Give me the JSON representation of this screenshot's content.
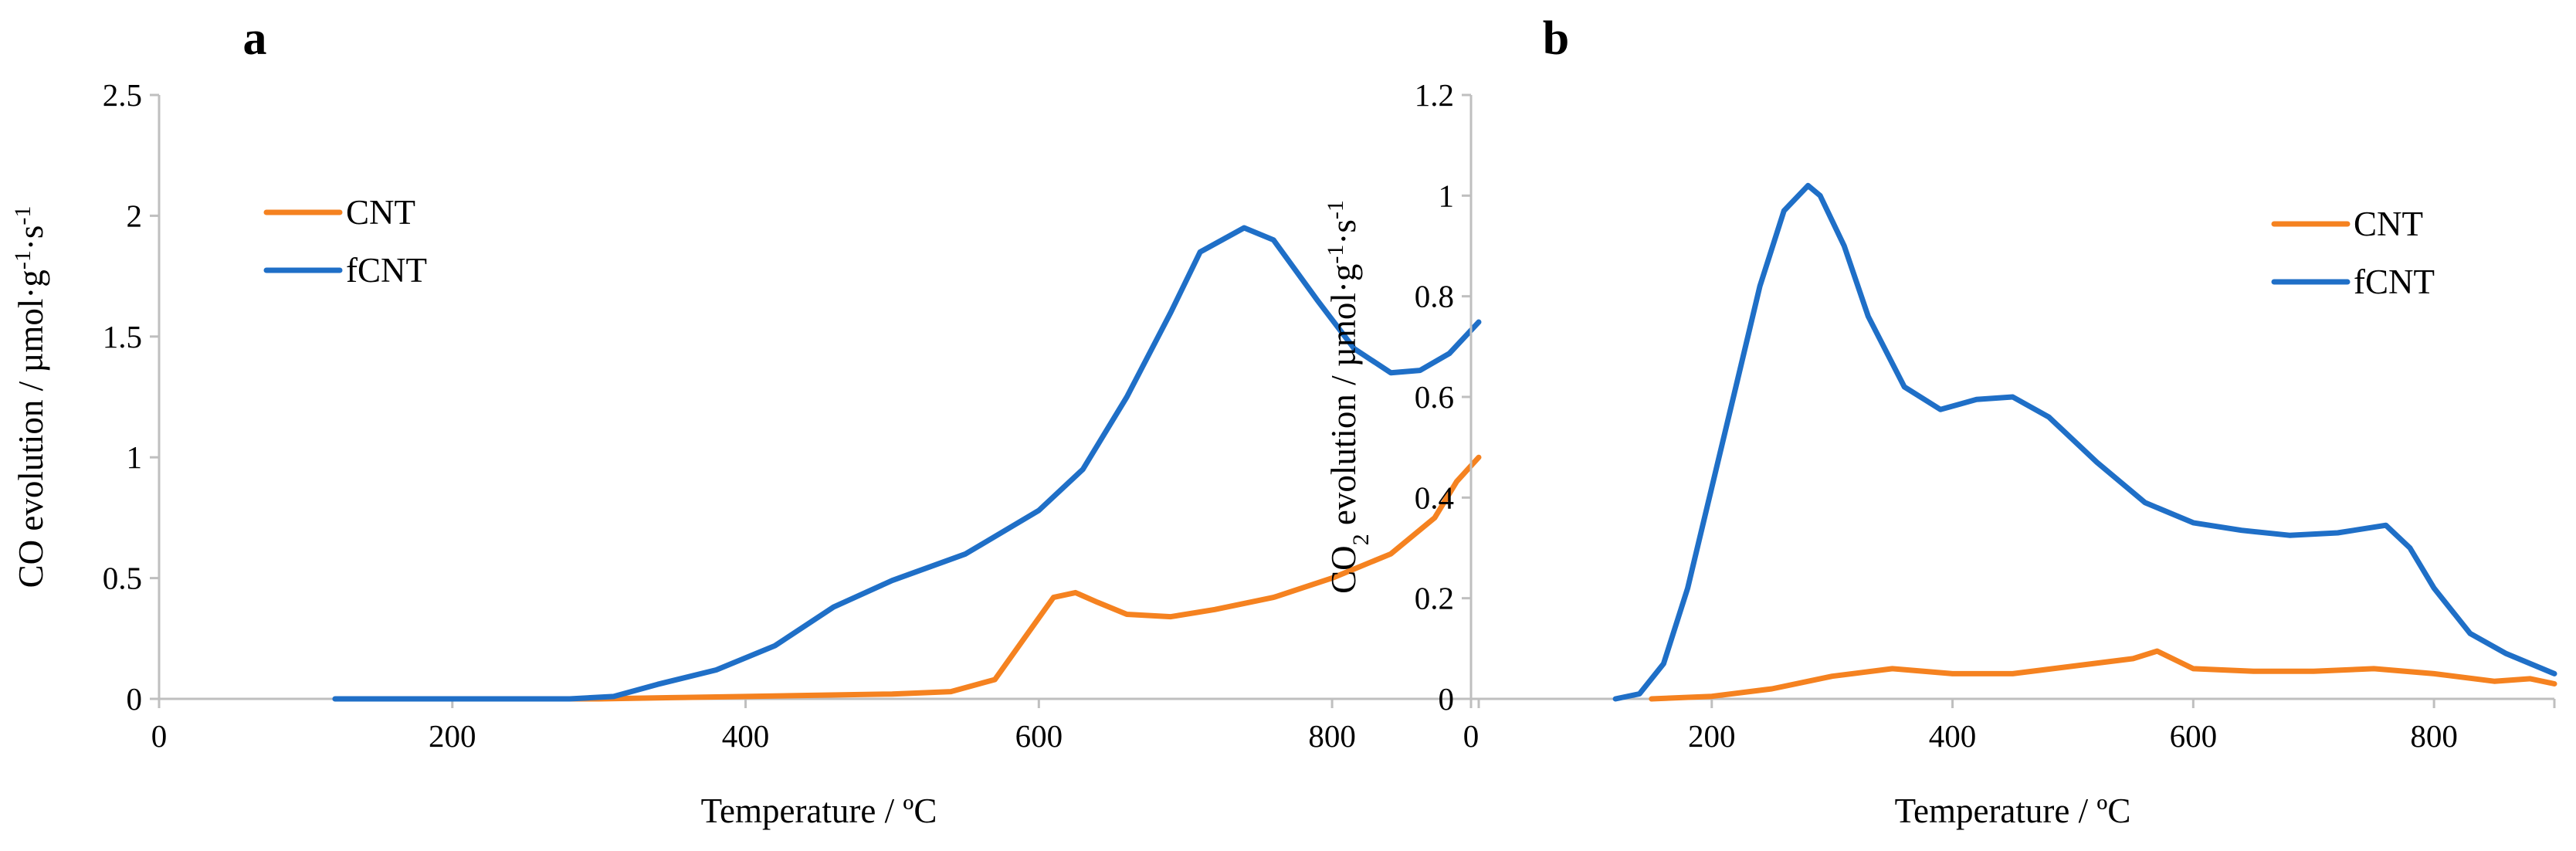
{
  "chart_data": [
    {
      "type": "line",
      "panel_label": "a",
      "title": "",
      "xlabel": "Temperature / ºC",
      "ylabel": "CO evolution / µmol·g⁻¹·s⁻¹",
      "xlim": [
        0,
        900
      ],
      "ylim": [
        0,
        2.5
      ],
      "x_ticks": [
        0,
        200,
        400,
        600,
        800
      ],
      "x_tick_labels": [
        "0",
        "200",
        "400",
        "600",
        "800"
      ],
      "y_ticks": [
        0,
        0.5,
        1,
        1.5,
        2,
        2.5
      ],
      "y_tick_labels": [
        "0",
        "0.5",
        "1",
        "1.5",
        "2",
        "2.5"
      ],
      "grid": false,
      "legend_position": "top-left",
      "series": [
        {
          "name": "CNT",
          "color": "#f58220",
          "x": [
            200,
            300,
            350,
            400,
            450,
            500,
            540,
            570,
            590,
            610,
            625,
            640,
            660,
            690,
            720,
            760,
            800,
            840,
            870,
            885,
            900
          ],
          "y": [
            0,
            0,
            0.005,
            0.01,
            0.015,
            0.02,
            0.03,
            0.08,
            0.25,
            0.42,
            0.44,
            0.4,
            0.35,
            0.34,
            0.37,
            0.42,
            0.5,
            0.6,
            0.75,
            0.9,
            1.0
          ]
        },
        {
          "name": "fCNT",
          "color": "#1f6fc7",
          "x": [
            120,
            200,
            280,
            310,
            340,
            380,
            420,
            460,
            500,
            550,
            600,
            630,
            660,
            690,
            710,
            740,
            760,
            790,
            815,
            840,
            860,
            880,
            900
          ],
          "y": [
            0,
            0,
            0,
            0.01,
            0.06,
            0.12,
            0.22,
            0.38,
            0.49,
            0.6,
            0.78,
            0.95,
            1.25,
            1.6,
            1.85,
            1.95,
            1.9,
            1.65,
            1.45,
            1.35,
            1.36,
            1.43,
            1.56
          ]
        }
      ]
    },
    {
      "type": "line",
      "panel_label": "b",
      "title": "",
      "xlabel": "Temperature / ºC",
      "ylabel": "CO₂ evolution / µmol·g⁻¹·s⁻¹",
      "xlim": [
        0,
        900
      ],
      "ylim": [
        0,
        1.2
      ],
      "x_ticks": [
        0,
        200,
        400,
        600,
        800
      ],
      "x_tick_labels": [
        "0",
        "200",
        "400",
        "600",
        "800"
      ],
      "y_ticks": [
        0,
        0.2,
        0.4,
        0.6,
        0.8,
        1,
        1.2
      ],
      "y_tick_labels": [
        "0",
        "0.2",
        "0.4",
        "0.6",
        "0.8",
        "1",
        "1.2"
      ],
      "grid": false,
      "legend_position": "top-right",
      "series": [
        {
          "name": "CNT",
          "color": "#f58220",
          "x": [
            150,
            200,
            250,
            300,
            350,
            400,
            450,
            500,
            550,
            570,
            600,
            650,
            700,
            750,
            800,
            850,
            880,
            900
          ],
          "y": [
            0,
            0.005,
            0.02,
            0.045,
            0.06,
            0.05,
            0.05,
            0.065,
            0.08,
            0.095,
            0.06,
            0.055,
            0.055,
            0.06,
            0.05,
            0.035,
            0.04,
            0.03
          ]
        },
        {
          "name": "fCNT",
          "color": "#1f6fc7",
          "x": [
            120,
            140,
            160,
            180,
            200,
            220,
            240,
            260,
            280,
            290,
            310,
            330,
            360,
            390,
            420,
            450,
            480,
            520,
            560,
            600,
            640,
            680,
            720,
            760,
            780,
            800,
            830,
            860,
            900
          ],
          "y": [
            0,
            0.01,
            0.07,
            0.22,
            0.42,
            0.62,
            0.82,
            0.97,
            1.02,
            1.0,
            0.9,
            0.76,
            0.62,
            0.575,
            0.595,
            0.6,
            0.56,
            0.47,
            0.39,
            0.35,
            0.335,
            0.325,
            0.33,
            0.345,
            0.3,
            0.22,
            0.13,
            0.09,
            0.05
          ]
        }
      ]
    }
  ]
}
